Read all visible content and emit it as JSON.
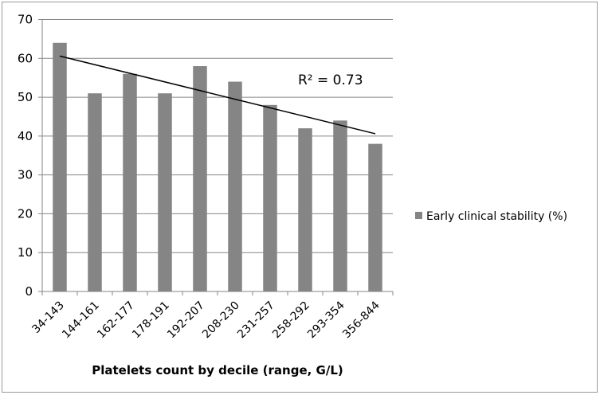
{
  "chart_data": {
    "type": "bar",
    "title": "",
    "xlabel": "Platelets count by decile (range, G/L)",
    "ylabel": "",
    "categories": [
      "34-143",
      "144-161",
      "162-177",
      "178-191",
      "192-207",
      "208-230",
      "231-257",
      "258-292",
      "293-354",
      "356-844"
    ],
    "series": [
      {
        "name": "Early clinical stability (%)",
        "values": [
          64,
          51,
          56,
          51,
          58,
          54,
          48,
          42,
          44,
          38
        ],
        "color": "#858585"
      }
    ],
    "ylim": [
      0,
      70
    ],
    "yticks": [
      0,
      10,
      20,
      30,
      40,
      50,
      60,
      70
    ],
    "grid": true,
    "legend": "right",
    "trendline": {
      "type": "linear",
      "start": 60.6,
      "end": 40.6,
      "label": "R² = 0.73",
      "color": "#000000"
    }
  }
}
